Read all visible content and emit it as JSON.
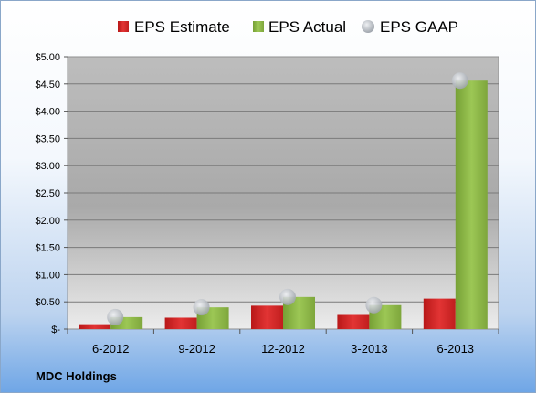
{
  "chart_data": {
    "type": "bar",
    "company": "MDC Holdings",
    "categories": [
      "6-2012",
      "9-2012",
      "12-2012",
      "3-2013",
      "6-2013"
    ],
    "series": [
      {
        "name": "EPS Estimate",
        "kind": "bar",
        "color": "#d42a2a",
        "values": [
          0.09,
          0.21,
          0.43,
          0.26,
          0.56
        ]
      },
      {
        "name": "EPS Actual",
        "kind": "bar",
        "color": "#8ab445",
        "values": [
          0.22,
          0.4,
          0.59,
          0.44,
          4.56
        ]
      },
      {
        "name": "EPS GAAP",
        "kind": "marker",
        "color": "#b9bdc3",
        "values": [
          0.22,
          0.4,
          0.59,
          0.44,
          4.56
        ]
      }
    ],
    "yticks": [
      "$5.00",
      "$4.50",
      "$4.00",
      "$3.50",
      "$3.00",
      "$2.50",
      "$2.00",
      "$1.50",
      "$1.00",
      "$0.50",
      "$-"
    ],
    "ylim": [
      0,
      5.0
    ],
    "grid": true,
    "legend": "top"
  }
}
